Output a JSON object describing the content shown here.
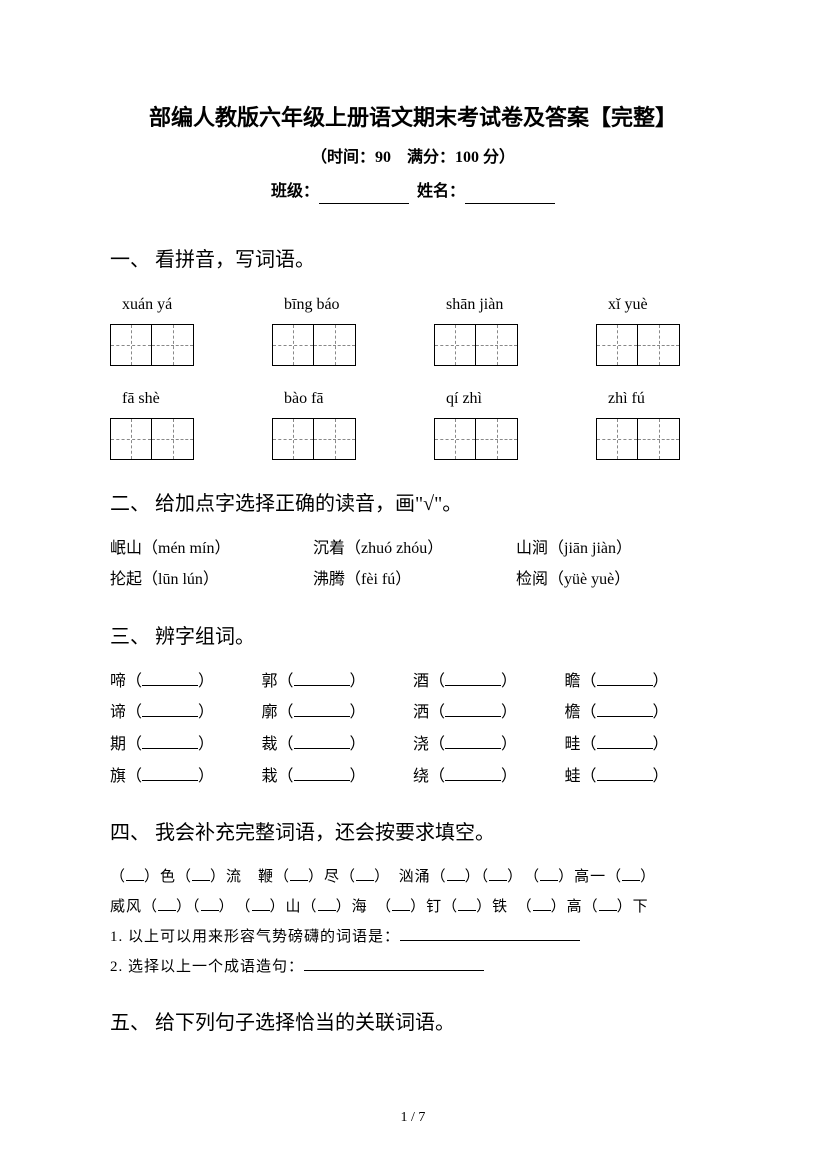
{
  "title": "部编人教版六年级上册语文期末考试卷及答案【完整】",
  "subtitle": "（时间：90　满分：100 分）",
  "class_label": "班级：",
  "name_label": "姓名：",
  "sections": {
    "s1": {
      "title": "一、 看拼音，写词语。",
      "row1": [
        "xuán yá",
        "bīng báo",
        "shān jiàn",
        "xǐ yuè"
      ],
      "row2": [
        "fā shè",
        "bào fā",
        "qí zhì",
        "zhì fú"
      ]
    },
    "s2": {
      "title": "二、 给加点字选择正确的读音，画\"√\"。",
      "items": [
        [
          "岷山（mén mín）",
          "沉着（zhuó zhóu）",
          "山涧（jiān jiàn）"
        ],
        [
          "抡起（lūn lún）",
          "沸腾（fèi fú）",
          "检阅（yüè yuè）"
        ]
      ]
    },
    "s3": {
      "title": "三、 辨字组词。",
      "rows": [
        [
          "啼",
          "郭",
          "酒",
          "瞻"
        ],
        [
          "谛",
          "廓",
          "洒",
          "檐"
        ],
        [
          "期",
          "裁",
          "浇",
          "畦"
        ],
        [
          "旗",
          "栽",
          "绕",
          "蛙"
        ]
      ]
    },
    "s4": {
      "title": "四、 我会补充完整词语，还会按要求填空。",
      "line1_parts": [
        "（",
        "）色（",
        "）流　鞭（",
        "）尽（",
        "）　汹涌（",
        "）（",
        "）　（",
        "）高一（",
        "）"
      ],
      "line2_parts": [
        "威风（",
        "）（",
        "）　（",
        "）山（",
        "）海　（",
        "）钉（",
        "）铁　（",
        "）高（",
        "）下"
      ],
      "q1": "1. 以上可以用来形容气势磅礴的词语是：",
      "q2": "2. 选择以上一个成语造句："
    },
    "s5": {
      "title": "五、 给下列句子选择恰当的关联词语。"
    }
  },
  "page_num": "1 / 7"
}
